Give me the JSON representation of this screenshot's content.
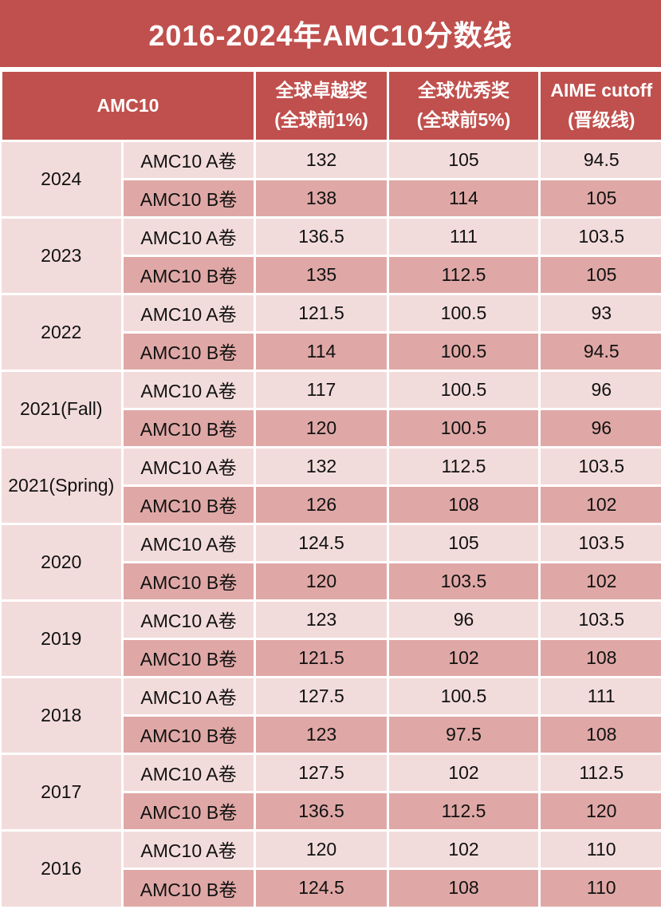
{
  "title": "2016-2024年AMC10分数线",
  "colors": {
    "header_red": "#c0504d",
    "row_light_pink": "#f2dcdb",
    "row_dark_pink": "#dfa8a6",
    "border_white": "#ffffff",
    "header_text": "#ffffff",
    "body_text": "#111111"
  },
  "table": {
    "header": {
      "amc10": "AMC10",
      "excellence_line1": "全球卓越奖",
      "excellence_line2": "(全球前1%)",
      "distinction_line1": "全球优秀奖",
      "distinction_line2": "(全球前5%)",
      "aime_line1": "AIME cutoff",
      "aime_line2": "(晋级线)"
    }
  },
  "chart_data": {
    "type": "table",
    "title": "2016-2024年AMC10分数线",
    "columns": [
      "AMC10",
      "全球卓越奖 (全球前1%)",
      "全球优秀奖 (全球前5%)",
      "AIME cutoff (晋级线)"
    ],
    "rows": [
      [
        "2024",
        "AMC10 A卷",
        132,
        105,
        94.5
      ],
      [
        "2024",
        "AMC10 B卷",
        138,
        114,
        105
      ],
      [
        "2023",
        "AMC10 A卷",
        136.5,
        111,
        103.5
      ],
      [
        "2023",
        "AMC10 B卷",
        135,
        112.5,
        105
      ],
      [
        "2022",
        "AMC10 A卷",
        121.5,
        100.5,
        93
      ],
      [
        "2022",
        "AMC10 B卷",
        114,
        100.5,
        94.5
      ],
      [
        "2021(Fall)",
        "AMC10 A卷",
        117,
        100.5,
        96
      ],
      [
        "2021(Fall)",
        "AMC10 B卷",
        120,
        100.5,
        96
      ],
      [
        "2021(Spring)",
        "AMC10 A卷",
        132,
        112.5,
        103.5
      ],
      [
        "2021(Spring)",
        "AMC10 B卷",
        126,
        108,
        102
      ],
      [
        "2020",
        "AMC10 A卷",
        124.5,
        105,
        103.5
      ],
      [
        "2020",
        "AMC10 B卷",
        120,
        103.5,
        102
      ],
      [
        "2019",
        "AMC10 A卷",
        123,
        96,
        103.5
      ],
      [
        "2019",
        "AMC10 B卷",
        121.5,
        102,
        108
      ],
      [
        "2018",
        "AMC10 A卷",
        127.5,
        100.5,
        111
      ],
      [
        "2018",
        "AMC10 B卷",
        123,
        97.5,
        108
      ],
      [
        "2017",
        "AMC10 A卷",
        127.5,
        102,
        112.5
      ],
      [
        "2017",
        "AMC10 B卷",
        136.5,
        112.5,
        120
      ],
      [
        "2016",
        "AMC10 A卷",
        120,
        102,
        110
      ],
      [
        "2016",
        "AMC10 B卷",
        124.5,
        108,
        110
      ]
    ]
  }
}
